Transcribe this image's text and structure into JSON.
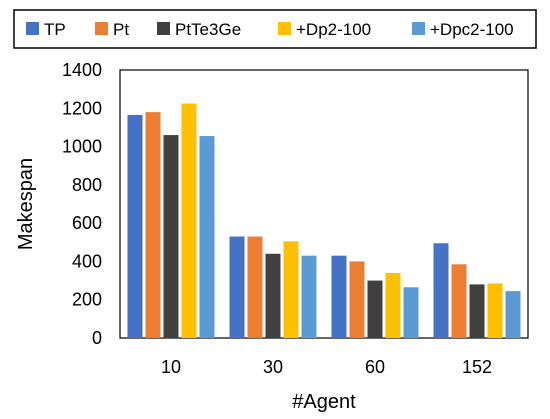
{
  "chart_data": {
    "type": "bar",
    "categories": [
      "10",
      "30",
      "60",
      "152"
    ],
    "series": [
      {
        "name": "TP",
        "color": "#4472C4",
        "values": [
          1165,
          530,
          430,
          495
        ]
      },
      {
        "name": "Pt",
        "color": "#ED7D31",
        "values": [
          1180,
          530,
          400,
          385
        ]
      },
      {
        "name": "PtTe3Ge",
        "color": "#404040",
        "values": [
          1060,
          440,
          300,
          280
        ]
      },
      {
        "name": "+Dp2-100",
        "color": "#FFC000",
        "values": [
          1225,
          505,
          340,
          285
        ]
      },
      {
        "name": "+Dpc2-100",
        "color": "#5B9BD5",
        "values": [
          1055,
          430,
          265,
          245
        ]
      }
    ],
    "xlabel": "#Agent",
    "ylabel": "Makespan",
    "ylim": [
      0,
      1400
    ],
    "yticks": [
      "0",
      "200",
      "400",
      "600",
      "800",
      "1000",
      "1200",
      "1400"
    ],
    "legend_position": "top",
    "grid": false
  }
}
